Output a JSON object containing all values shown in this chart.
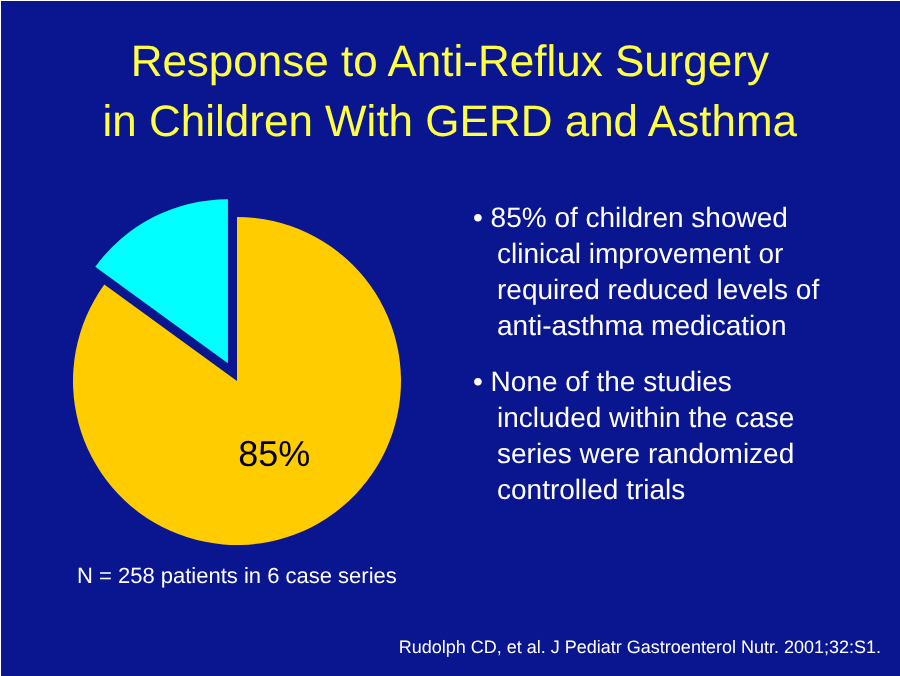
{
  "chart_data": {
    "type": "pie",
    "title": "Response to Anti-Reflux Surgery\nin Children With GERD and Asthma",
    "categories": [
      null,
      null
    ],
    "values": [
      85,
      15
    ],
    "colors": [
      "#ffcc00",
      "#00ffff"
    ],
    "value_labels": [
      "85%",
      null
    ],
    "annotations": [
      "• 85% of children showed clinical improvement or required reduced levels of anti-asthma medication",
      "• None of the studies included within the case series were randomized controlled trials",
      "N = 258 patients in 6 case series",
      "Rudolph CD, et al. J Pediatr Gastroenterol Nutr. 2001;32:S1."
    ]
  }
}
